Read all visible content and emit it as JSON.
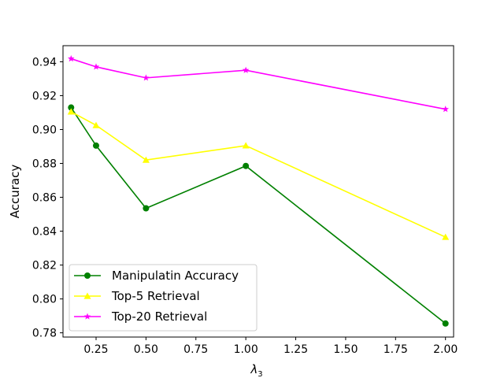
{
  "chart_data": {
    "type": "line",
    "x": [
      0.125,
      0.25,
      0.5,
      1.0,
      2.0
    ],
    "series": [
      {
        "name": "Manipulatin Accuracy",
        "values": [
          0.913,
          0.8905,
          0.8535,
          0.8785,
          0.7855
        ],
        "color": "#008000",
        "marker": "circle"
      },
      {
        "name": "Top-5 Retrieval",
        "values": [
          0.9105,
          0.9025,
          0.882,
          0.8905,
          0.8365
        ],
        "color": "#ffff00",
        "marker": "triangle"
      },
      {
        "name": "Top-20 Retrieval",
        "values": [
          0.9418,
          0.937,
          0.9305,
          0.935,
          0.912
        ],
        "color": "#ff00ff",
        "marker": "star"
      }
    ],
    "xlim": [
      0.0844,
      2.0406
    ],
    "ylim": [
      0.7775,
      0.9495
    ],
    "xticks": [
      0.25,
      0.5,
      0.75,
      1.0,
      1.25,
      1.5,
      1.75,
      2.0
    ],
    "xtick_labels": [
      "0.25",
      "0.50",
      "0.75",
      "1.00",
      "1.25",
      "1.50",
      "1.75",
      "2.00"
    ],
    "yticks": [
      0.78,
      0.8,
      0.82,
      0.84,
      0.86,
      0.88,
      0.9,
      0.92,
      0.94
    ],
    "ytick_labels": [
      "0.78",
      "0.80",
      "0.82",
      "0.84",
      "0.86",
      "0.88",
      "0.90",
      "0.92",
      "0.94"
    ],
    "xlabel": "λ",
    "xlabel_subscript": "3",
    "ylabel": "Accuracy",
    "grid": false,
    "legend_position": "lower-left"
  }
}
